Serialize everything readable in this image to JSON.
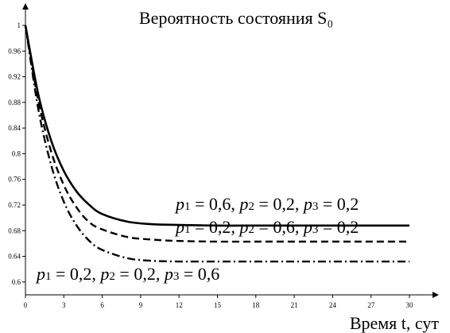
{
  "chart_data": {
    "type": "line",
    "title": "Вероятность состояния S₀",
    "xlabel": "Время t, сут",
    "ylabel": "",
    "xlim": [
      0,
      30
    ],
    "ylim": [
      0.58,
      1.0
    ],
    "x_ticks": [
      "0",
      "3",
      "6",
      "9",
      "12",
      "15",
      "18",
      "21",
      "24",
      "27",
      "30"
    ],
    "y_ticks": [
      "0.6",
      "0.64",
      "0.68",
      "0.72",
      "0.76",
      "0.8",
      "0.84",
      "0.88",
      "0.92",
      "0.96",
      "1"
    ],
    "grid": false,
    "series": [
      {
        "name": "p1 = 0,6, p2 = 0,2, p3 = 0,2",
        "label_parts": [
          [
            "p",
            "1",
            " = 0,6, "
          ],
          [
            "p",
            "2",
            " = 0,2, "
          ],
          [
            "p",
            "3",
            " = 0,2"
          ]
        ],
        "style": "solid",
        "x": [
          0,
          1,
          2,
          3,
          4,
          5,
          6,
          8,
          10,
          12,
          15,
          18,
          21,
          24,
          27,
          30
        ],
        "y": [
          1.0,
          0.893,
          0.821,
          0.773,
          0.741,
          0.72,
          0.706,
          0.694,
          0.69,
          0.689,
          0.688,
          0.688,
          0.688,
          0.688,
          0.688,
          0.688
        ]
      },
      {
        "name": "p1 = 0,2, p2 = 0,6, p3 = 0,2",
        "label_parts": [
          [
            "p",
            "1",
            " = 0,2, "
          ],
          [
            "p",
            "2",
            " = 0,6, "
          ],
          [
            "p",
            "3",
            " = 0,2"
          ]
        ],
        "style": "dashed",
        "x": [
          0,
          1,
          2,
          3,
          4,
          5,
          6,
          8,
          10,
          12,
          15,
          18,
          21,
          24,
          27,
          30
        ],
        "y": [
          1.0,
          0.883,
          0.804,
          0.751,
          0.716,
          0.693,
          0.682,
          0.67,
          0.666,
          0.664,
          0.663,
          0.663,
          0.663,
          0.663,
          0.663,
          0.663
        ]
      },
      {
        "name": "p1 = 0,2, p2 = 0,2, p3 = 0,6",
        "label_parts": [
          [
            "p",
            "1",
            " = 0,2, "
          ],
          [
            "p",
            "2",
            " = 0,2, "
          ],
          [
            "p",
            "3",
            " = 0,6"
          ]
        ],
        "style": "dashdot",
        "x": [
          0,
          1,
          2,
          3,
          4,
          5,
          6,
          8,
          10,
          12,
          15,
          18,
          21,
          24,
          27,
          30
        ],
        "y": [
          1.0,
          0.87,
          0.783,
          0.725,
          0.688,
          0.664,
          0.65,
          0.637,
          0.633,
          0.632,
          0.632,
          0.632,
          0.632,
          0.632,
          0.632,
          0.632
        ]
      }
    ]
  }
}
